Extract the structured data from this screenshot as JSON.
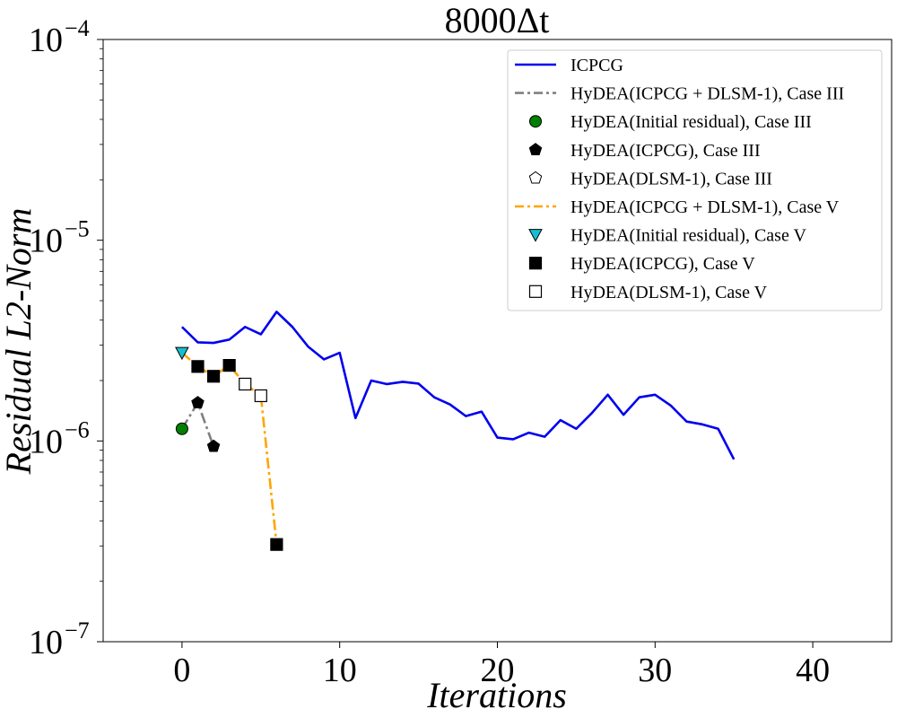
{
  "chart_data": {
    "type": "line",
    "title": "8000Δt",
    "xlabel": "Iterations",
    "ylabel": "Residual L2-Norm",
    "xlim": [
      -5,
      45
    ],
    "ylim": [
      1e-07,
      0.0001
    ],
    "yscale": "log",
    "grid": false,
    "legend_position": "top-right",
    "x_ticks": [
      0,
      10,
      20,
      30,
      40
    ],
    "y_ticks": [
      {
        "value": 1e-07,
        "base": "10",
        "exp": "−7"
      },
      {
        "value": 1e-06,
        "base": "10",
        "exp": "−6"
      },
      {
        "value": 1e-05,
        "base": "10",
        "exp": "−5"
      },
      {
        "value": 0.0001,
        "base": "10",
        "exp": "−4"
      }
    ],
    "series": [
      {
        "name": "ICPCG",
        "style": "line",
        "color": "#0000ee",
        "x": [
          0,
          1,
          2,
          3,
          4,
          5,
          6,
          7,
          8,
          9,
          10,
          11,
          12,
          13,
          14,
          15,
          16,
          17,
          18,
          19,
          20,
          21,
          22,
          23,
          24,
          25,
          26,
          27,
          28,
          29,
          30,
          31,
          32,
          33,
          34,
          35
        ],
        "y": [
          3.7e-06,
          3.1e-06,
          3.08e-06,
          3.2e-06,
          3.7e-06,
          3.4e-06,
          4.4e-06,
          3.7e-06,
          2.95e-06,
          2.55e-06,
          2.75e-06,
          1.3e-06,
          2e-06,
          1.92e-06,
          1.97e-06,
          1.93e-06,
          1.65e-06,
          1.52e-06,
          1.33e-06,
          1.4e-06,
          1.04e-06,
          1.02e-06,
          1.1e-06,
          1.05e-06,
          1.27e-06,
          1.15e-06,
          1.38e-06,
          1.7e-06,
          1.35e-06,
          1.65e-06,
          1.7e-06,
          1.5e-06,
          1.25e-06,
          1.21e-06,
          1.15e-06,
          8.1e-07
        ]
      },
      {
        "name": "HyDEA(ICPCG + DLSM-1), Case III",
        "style": "dashdot",
        "color": "#808080",
        "x": [
          0,
          1,
          2
        ],
        "y": [
          1.15e-06,
          1.55e-06,
          9.4e-07
        ]
      },
      {
        "name": "HyDEA(Initial residual), Case III",
        "style": "marker",
        "marker": "circle",
        "fill": "#008000",
        "x": [
          0
        ],
        "y": [
          1.15e-06
        ]
      },
      {
        "name": "HyDEA(ICPCG), Case III",
        "style": "marker",
        "marker": "pentagon",
        "fill": "#000000",
        "x": [
          1,
          2
        ],
        "y": [
          1.55e-06,
          9.4e-07
        ]
      },
      {
        "name": "HyDEA(DLSM-1), Case III",
        "style": "marker",
        "marker": "pentagon-open",
        "fill": "#ffffff",
        "x": [],
        "y": []
      },
      {
        "name": "HyDEA(ICPCG + DLSM-1), Case V",
        "style": "dashdot",
        "color": "#ffa500",
        "x": [
          0,
          1,
          2,
          3,
          4,
          5,
          6
        ],
        "y": [
          2.75e-06,
          2.35e-06,
          2.1e-06,
          2.38e-06,
          1.92e-06,
          1.68e-06,
          3.05e-07
        ]
      },
      {
        "name": "HyDEA(Initial residual), Case V",
        "style": "marker",
        "marker": "triangle-down",
        "fill": "#17becf",
        "x": [
          0
        ],
        "y": [
          2.75e-06
        ]
      },
      {
        "name": "HyDEA(ICPCG), Case V",
        "style": "marker",
        "marker": "square",
        "fill": "#000000",
        "x": [
          1,
          2,
          3,
          6
        ],
        "y": [
          2.35e-06,
          2.1e-06,
          2.38e-06,
          3.05e-07
        ]
      },
      {
        "name": "HyDEA(DLSM-1), Case V",
        "style": "marker",
        "marker": "square-open",
        "fill": "#ffffff",
        "x": [
          4,
          5
        ],
        "y": [
          1.92e-06,
          1.68e-06
        ]
      }
    ]
  }
}
